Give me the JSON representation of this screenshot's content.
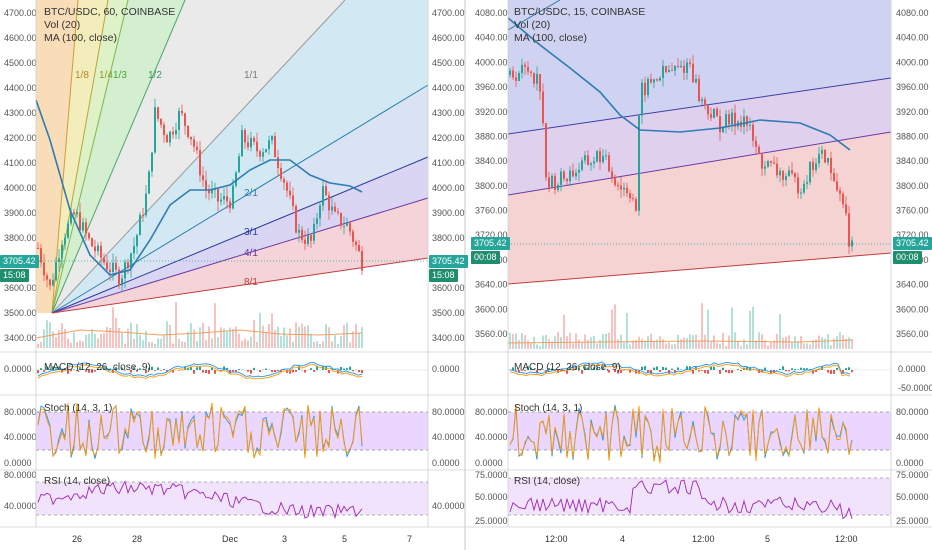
{
  "left_chart": {
    "title": "BTC/USDC, 60, COINBASE",
    "vol_label": "Vol (20)",
    "ma_label": "MA (100, close)",
    "price_ticks": [
      "4700.00",
      "4600.00",
      "4500.00",
      "4400.00",
      "4300.00",
      "4200.00",
      "4100.00",
      "4000.00",
      "3900.00",
      "3800.00",
      "3700.00",
      "3600.00",
      "3500.00",
      "3400.00"
    ],
    "last_price": "3705.42",
    "countdown": "15:08",
    "fan_labels": [
      "1/8",
      "1/4",
      "1/3",
      "1/2",
      "1/1",
      "2/1",
      "3/1",
      "4/1",
      "8/1"
    ],
    "macd_label": "MACD (12, 26, close, 9)",
    "macd_ticks": [
      "0.0000"
    ],
    "stoch_label": "Stoch (14, 3, 1)",
    "stoch_ticks": [
      "80.0000",
      "40.0000",
      "0.0000"
    ],
    "rsi_label": "RSI (14, close)",
    "rsi_ticks": [
      "80.0000",
      "40.0000"
    ],
    "time_ticks": [
      "26",
      "28",
      "Dec",
      "3",
      "5",
      "7"
    ]
  },
  "right_chart": {
    "title": "BTC/USDC, 15, COINBASE",
    "vol_label": "Vol (20)",
    "ma_label": "MA (100, close)",
    "price_ticks": [
      "4080.00",
      "4040.00",
      "4000.00",
      "3960.00",
      "3920.00",
      "3880.00",
      "3840.00",
      "3800.00",
      "3760.00",
      "3720.00",
      "3680.00",
      "3640.00",
      "3600.00",
      "3560.00"
    ],
    "last_price": "3705.42",
    "countdown": "00:08",
    "macd_label": "MACD (12, 26, close, 9)",
    "macd_ticks": [
      "0.0000",
      "-50.0000"
    ],
    "stoch_label": "Stoch (14, 3, 1)",
    "stoch_ticks": [
      "80.0000",
      "40.0000",
      "0.0000"
    ],
    "rsi_label": "RSI (14, close)",
    "rsi_ticks": [
      "75.0000",
      "50.0000",
      "25.0000"
    ],
    "time_ticks": [
      "12:00",
      "4",
      "12:00",
      "5",
      "12:00"
    ]
  },
  "colors": {
    "up": "#26a69a",
    "down": "#ef5350",
    "ma": "#2f7bb5",
    "stoch_band": "#d8b4fe",
    "rsi_band": "#efdcfb"
  }
}
